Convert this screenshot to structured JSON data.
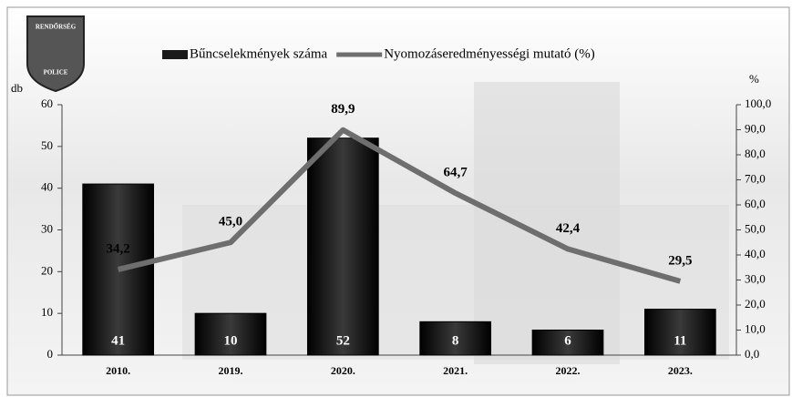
{
  "chart_data": {
    "type": "bar",
    "logo": {
      "top": "RENDŐRSÉG",
      "bottom": "POLICE"
    },
    "ylabel": "db",
    "y2label": "%",
    "categories": [
      "2010.",
      "2019.",
      "2020.",
      "2021.",
      "2022.",
      "2023."
    ],
    "series": [
      {
        "name": "Bűncselekmények száma",
        "type": "bar",
        "color": "#1a1a1a",
        "values": [
          41,
          10,
          52,
          8,
          6,
          11
        ]
      },
      {
        "name": "Nyomozáseredményességi mutató (%)",
        "type": "line",
        "axis": "y2",
        "color": "#6e6e6e",
        "values": [
          34.2,
          45.0,
          89.9,
          64.7,
          42.4,
          29.5
        ],
        "value_labels": [
          "34,2",
          "45,0",
          "89,9",
          "64,7",
          "42,4",
          "29,5"
        ]
      }
    ],
    "ylim": [
      0,
      60
    ],
    "yticks": [
      0,
      10,
      20,
      30,
      40,
      50,
      60
    ],
    "y2lim": [
      0,
      100
    ],
    "y2ticks": [
      {
        "value": 0,
        "label": "0,0"
      },
      {
        "value": 10,
        "label": "10,0"
      },
      {
        "value": 20,
        "label": "20,0"
      },
      {
        "value": 30,
        "label": "30,0"
      },
      {
        "value": 40,
        "label": "40,0"
      },
      {
        "value": 50,
        "label": "50,0"
      },
      {
        "value": 60,
        "label": "60,0"
      },
      {
        "value": 70,
        "label": "70,0"
      },
      {
        "value": 80,
        "label": "80,0"
      },
      {
        "value": 90,
        "label": "90,0"
      },
      {
        "value": 100,
        "label": "100,0"
      }
    ],
    "legend": "top"
  }
}
